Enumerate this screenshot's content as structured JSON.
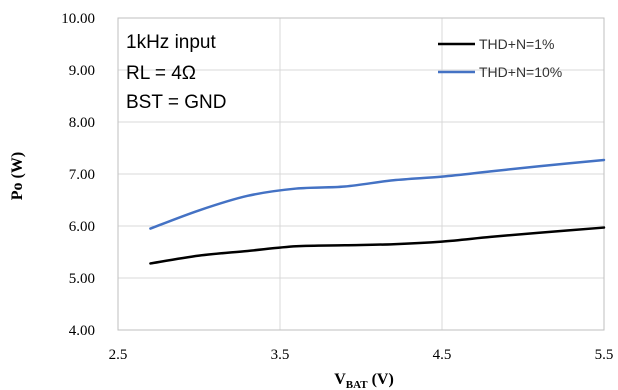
{
  "chart_data": {
    "type": "line",
    "title": "",
    "xlabel_main": "V",
    "xlabel_sub": "BAT",
    "xlabel_unit": " (V)",
    "ylabel": "Po (W)",
    "xlim": [
      2.7,
      5.5
    ],
    "ylim": [
      4.0,
      10.0
    ],
    "xticks": [
      2.5,
      3.5,
      4.5,
      5.5
    ],
    "xtick_labels": [
      "2.5",
      "3.5",
      "4.5",
      "5.5"
    ],
    "yticks": [
      4,
      5,
      6,
      7,
      8,
      9,
      10
    ],
    "ytick_labels": [
      "4.00",
      "5.00",
      "6.00",
      "7.00",
      "8.00",
      "9.00",
      "10.00"
    ],
    "grid": true,
    "legend_position": "top-right",
    "annotations": [
      "1kHz input",
      "RL = 4Ω",
      "BST = GND"
    ],
    "series": [
      {
        "name": "THD+N=1%",
        "color": "#000000",
        "x": [
          2.7,
          3.0,
          3.3,
          3.6,
          3.9,
          4.2,
          4.5,
          4.8,
          5.1,
          5.5
        ],
        "y": [
          5.28,
          5.43,
          5.52,
          5.61,
          5.63,
          5.65,
          5.7,
          5.79,
          5.87,
          5.97
        ]
      },
      {
        "name": "THD+N=10%",
        "color": "#4472C4",
        "x": [
          2.7,
          3.0,
          3.3,
          3.6,
          3.9,
          4.2,
          4.5,
          4.8,
          5.1,
          5.5
        ],
        "y": [
          5.95,
          6.3,
          6.58,
          6.72,
          6.76,
          6.88,
          6.95,
          7.05,
          7.15,
          7.27
        ]
      }
    ]
  }
}
